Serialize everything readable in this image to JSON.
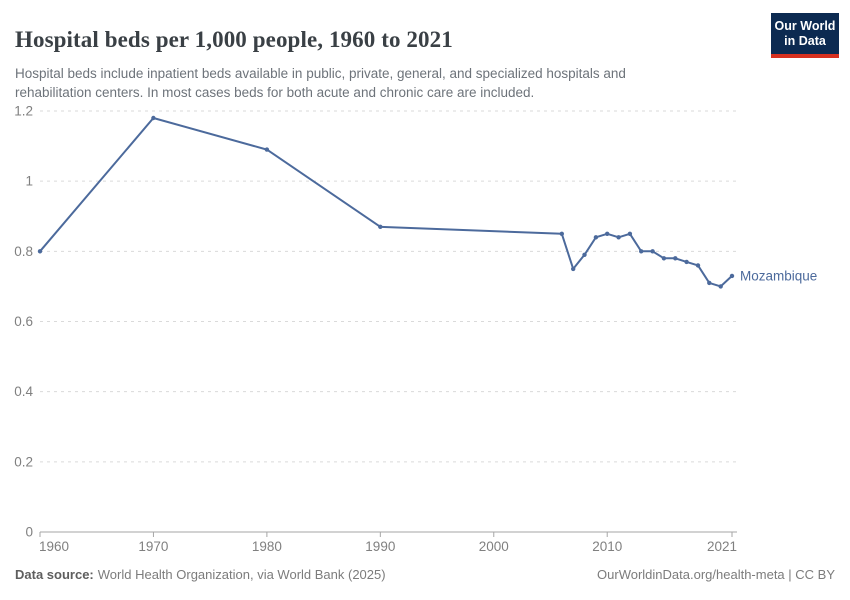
{
  "header": {
    "title": "Hospital beds per 1,000 people, 1960 to 2021",
    "subtitle": "Hospital beds include inpatient beds available in public, private, general, and specialized hospitals and rehabilitation centers. In most cases beds for both acute and chronic care are included.",
    "logo": {
      "line1": "Our World",
      "line2": "in Data",
      "bg_color": "#0c2a51",
      "accent_color": "#d7301f",
      "text_color": "#ffffff"
    }
  },
  "chart_data": {
    "type": "line",
    "title": "Hospital beds per 1,000 people, 1960 to 2021",
    "xlabel": "",
    "ylabel": "",
    "xlim": [
      1960,
      2021
    ],
    "ylim": [
      0,
      1.2
    ],
    "grid": "horizontal-dashed",
    "legend_position": "end-of-line-label",
    "x_ticks": [
      [
        1960,
        "1960"
      ],
      [
        1970,
        "1970"
      ],
      [
        1980,
        "1980"
      ],
      [
        1990,
        "1990"
      ],
      [
        2000,
        "2000"
      ],
      [
        2010,
        "2010"
      ],
      [
        2021,
        "2021"
      ]
    ],
    "y_ticks": [
      [
        0,
        "0"
      ],
      [
        0.2,
        "0.2"
      ],
      [
        0.4,
        "0.4"
      ],
      [
        0.6,
        "0.6"
      ],
      [
        0.8,
        "0.8"
      ],
      [
        1,
        "1"
      ],
      [
        1.2,
        "1.2"
      ]
    ],
    "series": [
      {
        "name": "Mozambique",
        "color": "#4c6a9c",
        "points": [
          [
            1960,
            0.8
          ],
          [
            1970,
            1.18
          ],
          [
            1980,
            1.09
          ],
          [
            1990,
            0.87
          ],
          [
            2006,
            0.85
          ],
          [
            2007,
            0.75
          ],
          [
            2008,
            0.79
          ],
          [
            2009,
            0.84
          ],
          [
            2010,
            0.85
          ],
          [
            2011,
            0.84
          ],
          [
            2012,
            0.85
          ],
          [
            2013,
            0.8
          ],
          [
            2014,
            0.8
          ],
          [
            2015,
            0.78
          ],
          [
            2016,
            0.78
          ],
          [
            2017,
            0.77
          ],
          [
            2018,
            0.76
          ],
          [
            2019,
            0.71
          ],
          [
            2020,
            0.7
          ],
          [
            2021,
            0.73
          ]
        ]
      }
    ],
    "colors": {
      "grid": "#dadada",
      "axis": "#a6a6a6",
      "tick_label": "#808080"
    }
  },
  "footer": {
    "source_label": "Data source:",
    "source_text": "World Health Organization, via World Bank (2025)",
    "link_text": "OurWorldinData.org/health-meta | CC BY"
  }
}
